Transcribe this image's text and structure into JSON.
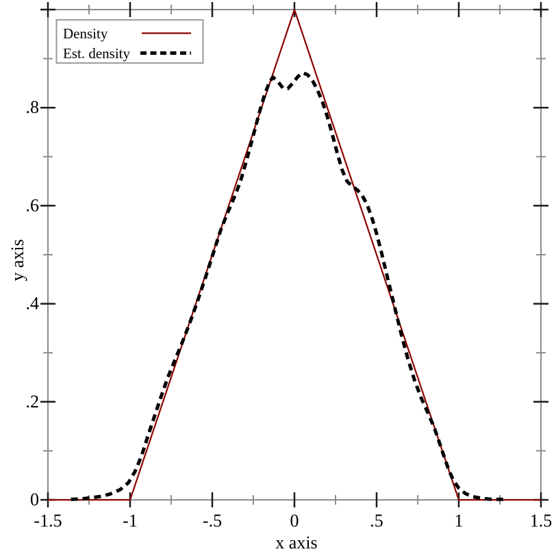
{
  "chart_data": {
    "type": "line",
    "title": "",
    "xlabel": "x axis",
    "ylabel": "y axis",
    "xlim": [
      -1.5,
      1.5
    ],
    "ylim": [
      0,
      1.0
    ],
    "grid": false,
    "x_ticks": {
      "major": [
        {
          "v": -1.5,
          "label": "-1.5"
        },
        {
          "v": -1.0,
          "label": "-1"
        },
        {
          "v": -0.5,
          "label": "-.5"
        },
        {
          "v": 0.0,
          "label": "0"
        },
        {
          "v": 0.5,
          "label": ".5"
        },
        {
          "v": 1.0,
          "label": "1"
        },
        {
          "v": 1.5,
          "label": "1.5"
        }
      ],
      "minor": [
        -1.25,
        -0.75,
        -0.25,
        0.25,
        0.75,
        1.25
      ]
    },
    "y_ticks": {
      "major": [
        {
          "v": 0.0,
          "label": "0"
        },
        {
          "v": 0.2,
          "label": ".2"
        },
        {
          "v": 0.4,
          "label": ".4"
        },
        {
          "v": 0.6,
          "label": ".6"
        },
        {
          "v": 0.8,
          "label": ".8"
        },
        {
          "v": 1.0,
          "label": ""
        }
      ],
      "minor": [
        0.1,
        0.3,
        0.5,
        0.7,
        0.9
      ]
    },
    "legend": {
      "position": "top-left",
      "entries": [
        {
          "label": "Density",
          "line": "solid",
          "color": "#8b0000"
        },
        {
          "label": "Est. density",
          "line": "dashed",
          "color": "#000000"
        }
      ]
    },
    "series": [
      {
        "id": "density",
        "name": "Density",
        "line": "solid",
        "color": "#8b0000",
        "width": 2.2,
        "points": [
          [
            -1.5,
            0
          ],
          [
            -1,
            0
          ],
          [
            0,
            1
          ],
          [
            1,
            0
          ],
          [
            1.5,
            0
          ]
        ]
      },
      {
        "id": "est-density",
        "name": "Est. density",
        "line": "dashed",
        "color": "#000000",
        "width": 5,
        "dash": [
          10,
          7
        ],
        "points": [
          [
            -1.36,
            0.001
          ],
          [
            -1.3,
            0.002
          ],
          [
            -1.24,
            0.004
          ],
          [
            -1.18,
            0.007
          ],
          [
            -1.12,
            0.012
          ],
          [
            -1.06,
            0.021
          ],
          [
            -1.01,
            0.035
          ],
          [
            -0.97,
            0.058
          ],
          [
            -0.93,
            0.09
          ],
          [
            -0.89,
            0.132
          ],
          [
            -0.85,
            0.172
          ],
          [
            -0.81,
            0.212
          ],
          [
            -0.77,
            0.25
          ],
          [
            -0.73,
            0.283
          ],
          [
            -0.69,
            0.315
          ],
          [
            -0.64,
            0.358
          ],
          [
            -0.59,
            0.405
          ],
          [
            -0.54,
            0.455
          ],
          [
            -0.49,
            0.507
          ],
          [
            -0.45,
            0.549
          ],
          [
            -0.41,
            0.583
          ],
          [
            -0.37,
            0.614
          ],
          [
            -0.33,
            0.648
          ],
          [
            -0.29,
            0.694
          ],
          [
            -0.25,
            0.744
          ],
          [
            -0.21,
            0.794
          ],
          [
            -0.18,
            0.828
          ],
          [
            -0.15,
            0.854
          ],
          [
            -0.13,
            0.862
          ],
          [
            -0.1,
            0.853
          ],
          [
            -0.07,
            0.84
          ],
          [
            -0.04,
            0.839
          ],
          [
            -0.01,
            0.85
          ],
          [
            0.02,
            0.863
          ],
          [
            0.05,
            0.871
          ],
          [
            0.08,
            0.867
          ],
          [
            0.11,
            0.855
          ],
          [
            0.14,
            0.836
          ],
          [
            0.17,
            0.812
          ],
          [
            0.2,
            0.782
          ],
          [
            0.23,
            0.746
          ],
          [
            0.26,
            0.708
          ],
          [
            0.29,
            0.673
          ],
          [
            0.32,
            0.65
          ],
          [
            0.35,
            0.64
          ],
          [
            0.38,
            0.633
          ],
          [
            0.41,
            0.622
          ],
          [
            0.44,
            0.604
          ],
          [
            0.47,
            0.577
          ],
          [
            0.5,
            0.543
          ],
          [
            0.53,
            0.504
          ],
          [
            0.57,
            0.448
          ],
          [
            0.61,
            0.393
          ],
          [
            0.65,
            0.338
          ],
          [
            0.69,
            0.288
          ],
          [
            0.73,
            0.245
          ],
          [
            0.77,
            0.209
          ],
          [
            0.81,
            0.179
          ],
          [
            0.85,
            0.148
          ],
          [
            0.88,
            0.119
          ],
          [
            0.91,
            0.089
          ],
          [
            0.94,
            0.06
          ],
          [
            0.97,
            0.038
          ],
          [
            1.0,
            0.024
          ],
          [
            1.04,
            0.013
          ],
          [
            1.08,
            0.007
          ],
          [
            1.14,
            0.003
          ],
          [
            1.2,
            0.001
          ],
          [
            1.27,
            0.001
          ]
        ]
      }
    ]
  },
  "style_colors": {
    "background": "#ffffff",
    "frame": "#8c8c8c",
    "major_tick": "#1a1a1a",
    "minor_tick": "#8c8c8c",
    "text": "#000000",
    "legend_border": "#9a9a9a",
    "legend_fill": "#ffffff"
  }
}
